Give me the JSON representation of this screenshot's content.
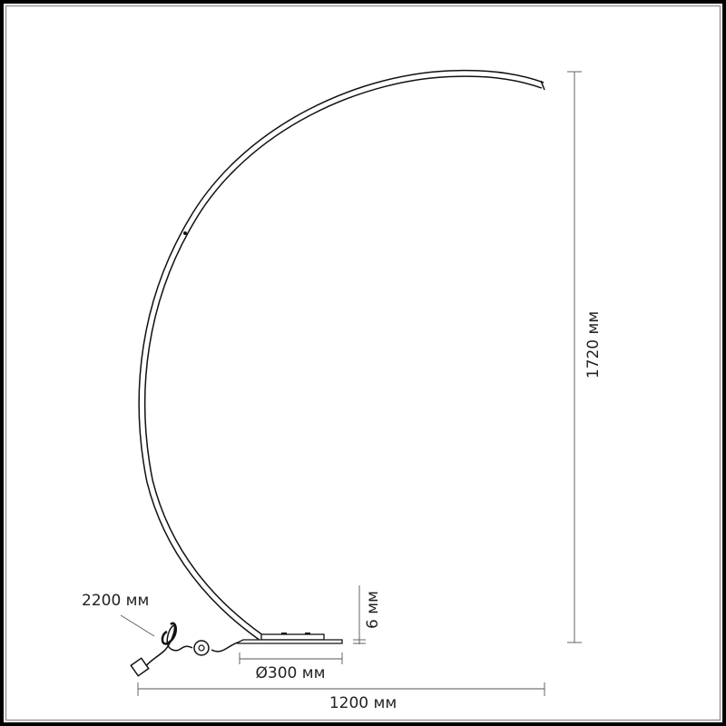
{
  "dimensions": {
    "height": "1720 мм",
    "width": "1200 мм",
    "base_diameter": "Ø300 мм",
    "base_thickness": "6 мм",
    "cable_length": "2200 мм"
  },
  "colors": {
    "line": "#111111",
    "dimension_line": "#555555",
    "frame": "#000000",
    "frame_inner": "#9a9a9a"
  }
}
